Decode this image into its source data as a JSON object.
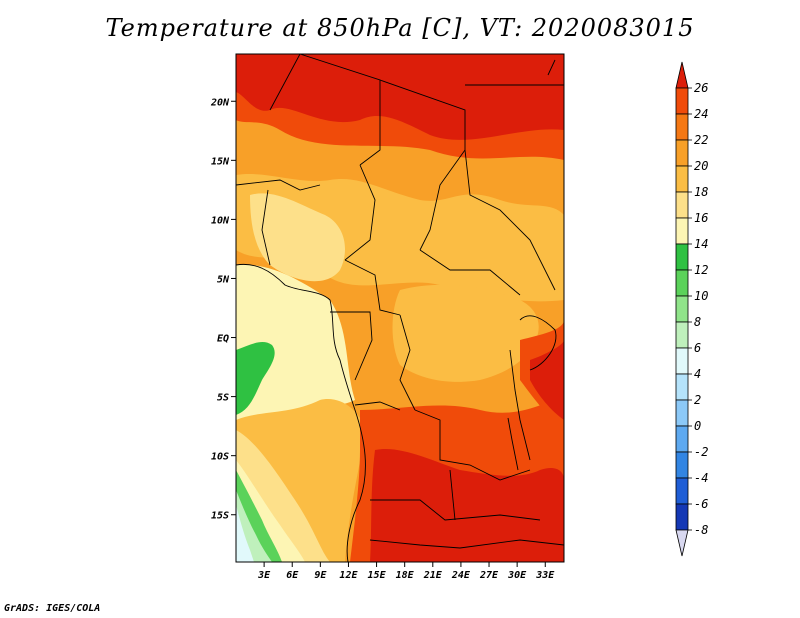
{
  "title": "Temperature at 850hPa [C], VT: 2020083015",
  "footer": "GrADS: IGES/COLA",
  "map": {
    "variable": "Temperature at 850hPa",
    "units": "C",
    "valid_time": "2020083015",
    "lon_range": [
      0,
      35
    ],
    "lat_range": [
      -19,
      24
    ],
    "lon_ticks": [
      "3E",
      "6E",
      "9E",
      "12E",
      "15E",
      "18E",
      "21E",
      "24E",
      "27E",
      "30E",
      "33E"
    ],
    "lat_ticks": [
      "20N",
      "15N",
      "10N",
      "5N",
      "EQ",
      "5S",
      "10S",
      "15S"
    ]
  },
  "colorbar": {
    "labels": [
      "26",
      "24",
      "22",
      "20",
      "18",
      "16",
      "14",
      "12",
      "10",
      "8",
      "6",
      "4",
      "2",
      "0",
      "-2",
      "-4",
      "-6",
      "-8"
    ],
    "colors": [
      "#dc1e0a",
      "#f04b0a",
      "#f57814",
      "#f8a028",
      "#fbbd44",
      "#fde08a",
      "#fdf5b4",
      "#2fc142",
      "#5bd25a",
      "#90e48a",
      "#bff0bc",
      "#e1f9fb",
      "#b5e3fb",
      "#8cc9f8",
      "#5ea9f0",
      "#3285e3",
      "#1f5ed6",
      "#1438b5",
      "#0a1b8f"
    ]
  }
}
